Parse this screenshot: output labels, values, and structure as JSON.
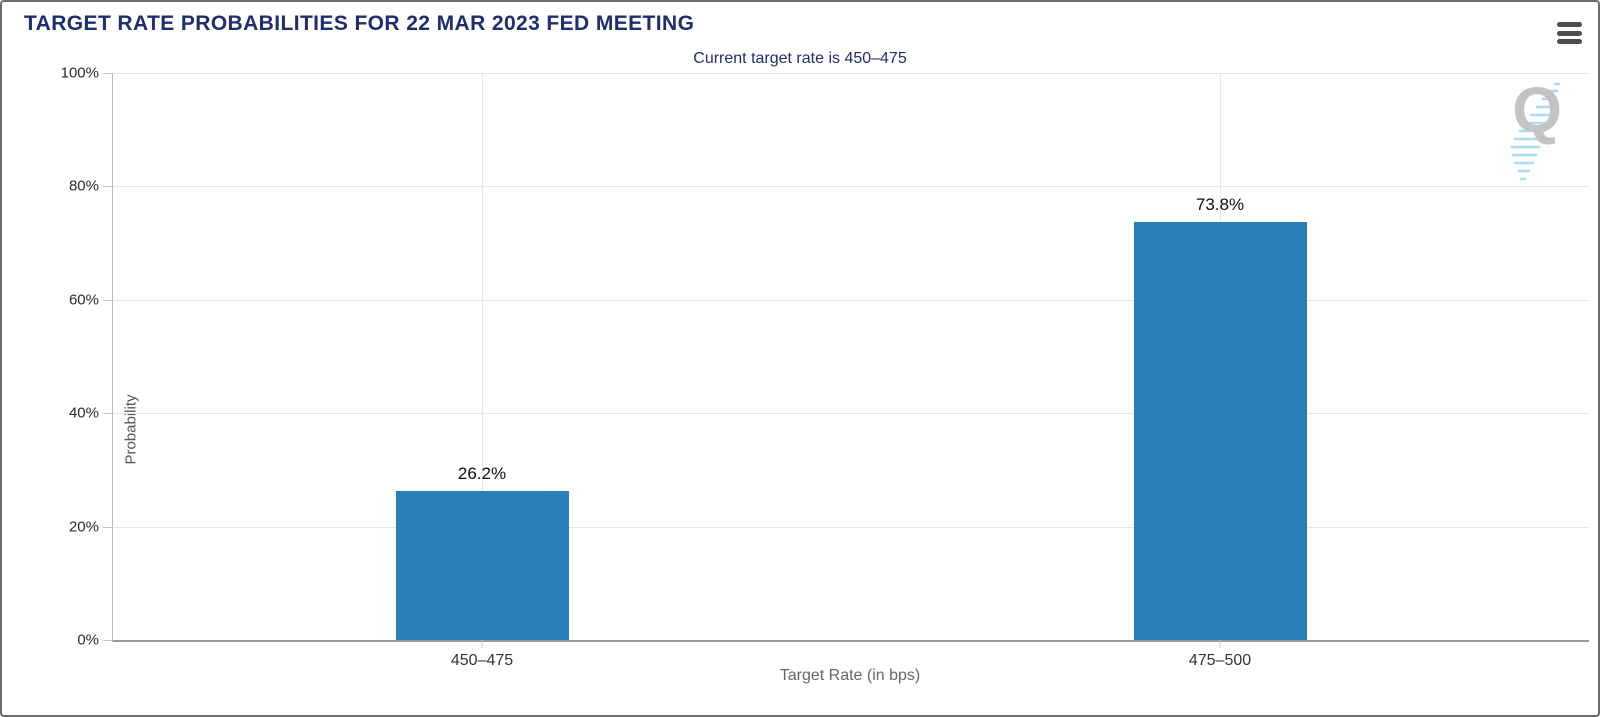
{
  "window": {
    "title": "TARGET RATE PROBABILITIES FOR 22 MAR 2023 FED MEETING"
  },
  "toolbar": {
    "menu_icon": "hamburger-menu-icon"
  },
  "watermark": {
    "letter": "Q"
  },
  "chart_data": {
    "type": "bar",
    "title": "TARGET RATE PROBABILITIES FOR 22 MAR 2023 FED MEETING",
    "subtitle": "Current target rate is 450–475",
    "categories": [
      "450–475",
      "475–500"
    ],
    "values": [
      26.2,
      73.8
    ],
    "value_labels": [
      "26.2%",
      "73.8%"
    ],
    "xlabel": "Target Rate (in bps)",
    "ylabel": "Probability",
    "ylim": [
      0,
      100
    ],
    "yticks": [
      0,
      20,
      40,
      60,
      80,
      100
    ],
    "ytick_labels": [
      "0%",
      "20%",
      "40%",
      "60%",
      "80%",
      "100%"
    ],
    "grid": true,
    "legend": "none",
    "bar_color": "#2b7fb8"
  },
  "colors": {
    "title_text": "#1e2e6e",
    "subtitle_text": "#1e2e6e",
    "bar": "#2b7fb8",
    "gridline": "#e6e6e6",
    "axis": "#9a9a9a",
    "watermark_gray": "#c3c3c3",
    "watermark_blue": "#a9def2",
    "menu_icon": "#4d4d4d"
  }
}
